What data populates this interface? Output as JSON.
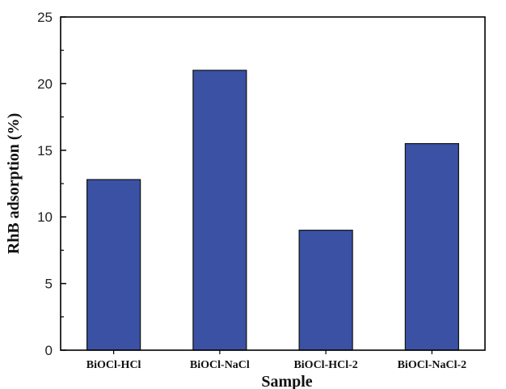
{
  "chart_data": {
    "type": "bar",
    "title": "",
    "xlabel": "Sample",
    "ylabel": "RhB adsorption (%)",
    "categories": [
      "BiOCl-HCl",
      "BiOCl-NaCl",
      "BiOCl-HCl-2",
      "BiOCl-NaCl-2"
    ],
    "values": [
      12.8,
      21.0,
      9.0,
      15.5
    ],
    "ylim": [
      0,
      25
    ],
    "yticks": [
      0,
      5,
      10,
      15,
      20,
      25
    ],
    "grid": false,
    "legend": "none",
    "bar_color": "#3a51a4",
    "bar_edge_color": "#111111"
  }
}
